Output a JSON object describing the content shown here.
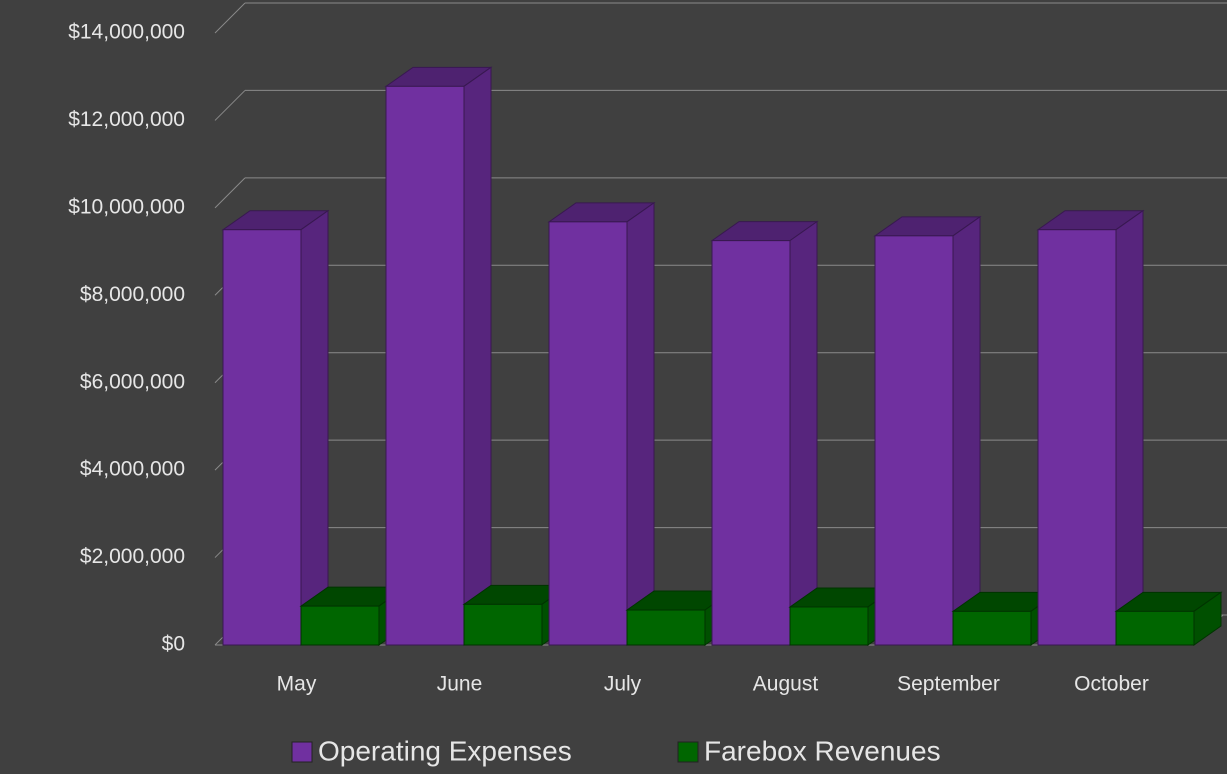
{
  "chart_data": {
    "type": "bar3d",
    "categories": [
      "May",
      "June",
      "July",
      "August",
      "September",
      "October"
    ],
    "series": [
      {
        "name": "Operating Expenses",
        "color": "#7030a0",
        "values": [
          9500000,
          12780000,
          9680000,
          9250000,
          9360000,
          9500000
        ]
      },
      {
        "name": "Farebox Revenues",
        "color": "#006600",
        "values": [
          890000,
          930000,
          800000,
          870000,
          770000,
          770000
        ]
      }
    ],
    "ylim": [
      0,
      14000000
    ],
    "yticks": [
      {
        "value": 0,
        "label": "$0"
      },
      {
        "value": 2000000,
        "label": "$2,000,000"
      },
      {
        "value": 4000000,
        "label": "$4,000,000"
      },
      {
        "value": 6000000,
        "label": "$6,000,000"
      },
      {
        "value": 8000000,
        "label": "$8,000,000"
      },
      {
        "value": 10000000,
        "label": "$10,000,000"
      },
      {
        "value": 12000000,
        "label": "$12,000,000"
      },
      {
        "value": 14000000,
        "label": "$14,000,000"
      }
    ],
    "grid": true,
    "legend": "bottom"
  }
}
